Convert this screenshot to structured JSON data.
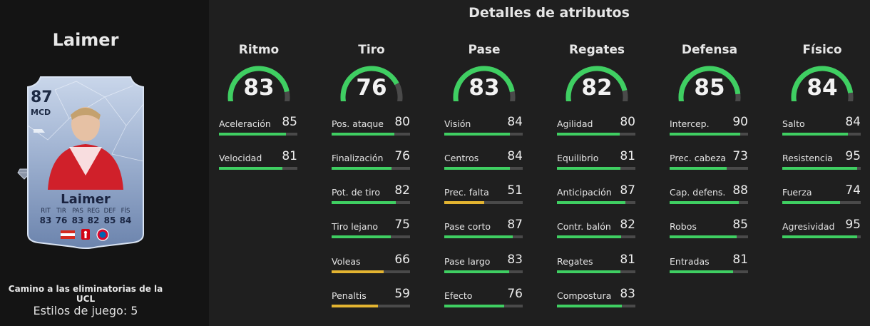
{
  "left_panel": {
    "player_title": "Laimer",
    "card": {
      "rating": "87",
      "position": "MCD",
      "name": "Laimer",
      "stats": [
        {
          "label": "RIT",
          "value": "83"
        },
        {
          "label": "TIR",
          "value": "76"
        },
        {
          "label": "PAS",
          "value": "83"
        },
        {
          "label": "REG",
          "value": "82"
        },
        {
          "label": "DEF",
          "value": "85"
        },
        {
          "label": "FÍS",
          "value": "84"
        }
      ]
    },
    "subtitle": "Camino a las eliminatorias de la UCL",
    "playstyles": "Estilos de juego: 5"
  },
  "details": {
    "title": "Detalles de atributos",
    "categories": [
      {
        "name": "Ritmo",
        "value": 83,
        "stats": [
          {
            "label": "Aceleración",
            "value": 85
          },
          {
            "label": "Velocidad",
            "value": 81
          }
        ]
      },
      {
        "name": "Tiro",
        "value": 76,
        "stats": [
          {
            "label": "Pos. ataque",
            "value": 80
          },
          {
            "label": "Finalización",
            "value": 76
          },
          {
            "label": "Pot. de tiro",
            "value": 82
          },
          {
            "label": "Tiro lejano",
            "value": 75
          },
          {
            "label": "Voleas",
            "value": 66
          },
          {
            "label": "Penaltis",
            "value": 59
          }
        ]
      },
      {
        "name": "Pase",
        "value": 83,
        "stats": [
          {
            "label": "Visión",
            "value": 84
          },
          {
            "label": "Centros",
            "value": 84
          },
          {
            "label": "Prec. falta",
            "value": 51
          },
          {
            "label": "Pase corto",
            "value": 87
          },
          {
            "label": "Pase largo",
            "value": 83
          },
          {
            "label": "Efecto",
            "value": 76
          }
        ]
      },
      {
        "name": "Regates",
        "value": 82,
        "stats": [
          {
            "label": "Agilidad",
            "value": 80
          },
          {
            "label": "Equilibrio",
            "value": 81
          },
          {
            "label": "Anticipación",
            "value": 87
          },
          {
            "label": "Contr. balón",
            "value": 82
          },
          {
            "label": "Regates",
            "value": 81
          },
          {
            "label": "Compostura",
            "value": 83
          }
        ]
      },
      {
        "name": "Defensa",
        "value": 85,
        "stats": [
          {
            "label": "Intercep.",
            "value": 90
          },
          {
            "label": "Prec. cabeza",
            "value": 73
          },
          {
            "label": "Cap. defens.",
            "value": 88
          },
          {
            "label": "Robos",
            "value": 85
          },
          {
            "label": "Entradas",
            "value": 81
          }
        ]
      },
      {
        "name": "Físico",
        "value": 84,
        "stats": [
          {
            "label": "Salto",
            "value": 84
          },
          {
            "label": "Resistencia",
            "value": 95
          },
          {
            "label": "Fuerza",
            "value": 74
          },
          {
            "label": "Agresividad",
            "value": 95
          }
        ]
      }
    ]
  },
  "colors": {
    "high": "#3fcf62",
    "mid": "#e3b431",
    "track": "#4a4a4a"
  }
}
